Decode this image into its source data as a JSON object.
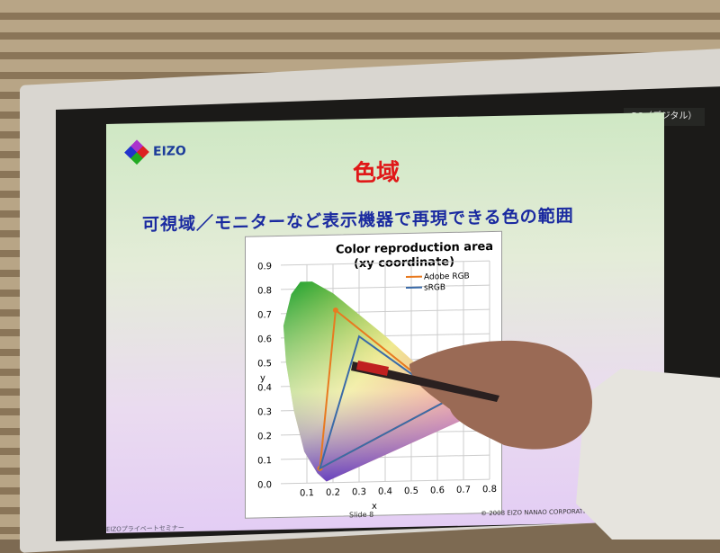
{
  "screen_tag": "PC（デジタル）",
  "slide": {
    "logo": "EIZO",
    "title": "色域",
    "subtitle": "可視域／モニターなど表示機器で再現できる色の範囲",
    "slide_number": "Slide 8",
    "copyright": "© 2008 EIZO NANAO CORPORATION. All Rights Reserved.",
    "company_partial": "株式会",
    "footer": "EIZOプライベートセミナー"
  },
  "chart_data": {
    "type": "line",
    "title": "Color reproduction area",
    "subtitle": "(xy coordinate)",
    "xlabel": "x",
    "ylabel": "y",
    "xlim": [
      0,
      0.8
    ],
    "ylim": [
      0,
      0.9
    ],
    "x_ticks": [
      "0.1",
      "0.2",
      "0.3",
      "0.4",
      "0.5",
      "0.6",
      "0.7",
      "0.8"
    ],
    "y_ticks": [
      "0.0",
      "0.1",
      "0.2",
      "0.3",
      "0.4",
      "0.5",
      "0.6",
      "0.7",
      "0.8",
      "0.9"
    ],
    "grid": true,
    "legend": "top-right",
    "series": [
      {
        "name": "Adobe RGB",
        "color": "#e87a20",
        "points": [
          [
            0.64,
            0.33
          ],
          [
            0.21,
            0.71
          ],
          [
            0.15,
            0.06
          ]
        ]
      },
      {
        "name": "sRGB",
        "color": "#3a6aa8",
        "points": [
          [
            0.64,
            0.33
          ],
          [
            0.3,
            0.6
          ],
          [
            0.15,
            0.06
          ]
        ]
      }
    ]
  }
}
